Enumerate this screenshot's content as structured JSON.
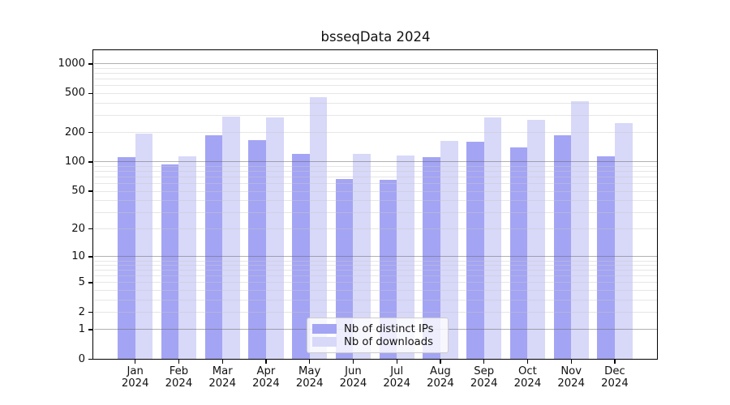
{
  "figure": {
    "title": "bsseqData 2024"
  },
  "chart_data": {
    "type": "bar",
    "title": "bsseqData 2024",
    "subtitle": "",
    "xlabel": "",
    "ylabel": "",
    "scale": "log10(value+1)",
    "ylim": [
      0,
      1380
    ],
    "grid": "horizontal: major gridlines at 1,10,100,1000; minor gridlines at 2-9 per decade",
    "legend_position": "inside bottom-center",
    "y_tick_labels": [
      "1000",
      "500",
      "200",
      "100",
      "50",
      "20",
      "10",
      "5",
      "2",
      "1",
      "0"
    ],
    "y_tick_values": [
      1000,
      500,
      200,
      100,
      50,
      20,
      10,
      5,
      2,
      1,
      0
    ],
    "categories": [
      {
        "month": "Jan",
        "year": "2024"
      },
      {
        "month": "Feb",
        "year": "2024"
      },
      {
        "month": "Mar",
        "year": "2024"
      },
      {
        "month": "Apr",
        "year": "2024"
      },
      {
        "month": "May",
        "year": "2024"
      },
      {
        "month": "Jun",
        "year": "2024"
      },
      {
        "month": "Jul",
        "year": "2024"
      },
      {
        "month": "Aug",
        "year": "2024"
      },
      {
        "month": "Sep",
        "year": "2024"
      },
      {
        "month": "Oct",
        "year": "2024"
      },
      {
        "month": "Nov",
        "year": "2024"
      },
      {
        "month": "Dec",
        "year": "2024"
      }
    ],
    "series": [
      {
        "name": "Nb of distinct IPs",
        "color": "#a4a4f4",
        "values": [
          112,
          94,
          187,
          168,
          121,
          67,
          66,
          113,
          161,
          142,
          187,
          115
        ]
      },
      {
        "name": "Nb of downloads",
        "color": "#d8d8f9",
        "values": [
          196,
          114,
          289,
          287,
          460,
          121,
          117,
          164,
          286,
          270,
          415,
          250
        ]
      }
    ]
  }
}
